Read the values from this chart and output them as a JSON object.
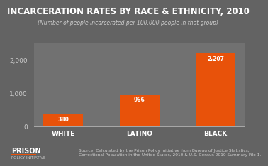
{
  "title": "INCARCERATION RATES BY RACE & ETHNICITY, 2010",
  "subtitle": "(Number of people incarcerated per 100,000 people in that group)",
  "categories": [
    "WHITE",
    "LATINO",
    "BLACK"
  ],
  "values": [
    380,
    966,
    2207
  ],
  "bar_color": "#E8520A",
  "bg_color": "#636363",
  "plot_bg_color": "#717171",
  "text_color": "#cccccc",
  "label_color": "#ffffff",
  "yticks": [
    0,
    1000,
    2000
  ],
  "ylim": [
    0,
    2500
  ],
  "source_text": "Source: Calculated by the Prison Policy Initiative from Bureau of Justice Statistics,\nCorrectional Population in the United States, 2010 & U.S. Census 2010 Summary File 1.",
  "logo_line1": "PRISON",
  "logo_line2": "POLICY INITIATIVE",
  "value_labels": [
    "380",
    "966",
    "2,207"
  ],
  "title_fontsize": 8.5,
  "subtitle_fontsize": 5.5,
  "axis_label_fontsize": 6.5,
  "bar_label_fontsize": 5.5,
  "source_fontsize": 4.2,
  "logo_fontsize1": 7,
  "logo_fontsize2": 4
}
